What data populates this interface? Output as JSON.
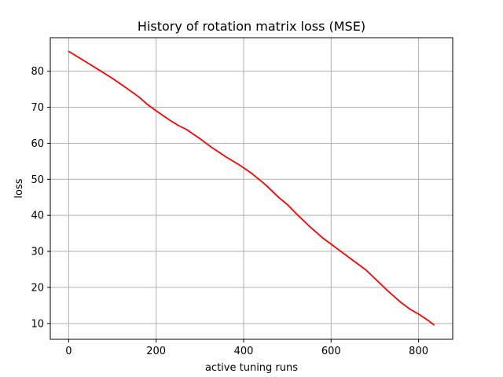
{
  "chart_data": {
    "type": "line",
    "title": "History of rotation matrix loss (MSE)",
    "xlabel": "active tuning runs",
    "ylabel": "loss",
    "xlim": [
      -42,
      878
    ],
    "ylim": [
      5.6,
      89.3
    ],
    "x_ticks": [
      0,
      200,
      400,
      600,
      800
    ],
    "y_ticks": [
      10,
      20,
      30,
      40,
      50,
      60,
      70,
      80
    ],
    "grid": true,
    "series": [
      {
        "color": "#ff0000",
        "x": [
          0,
          50,
          70,
          100,
          130,
          160,
          180,
          200,
          230,
          250,
          270,
          300,
          330,
          360,
          390,
          400,
          420,
          450,
          480,
          500,
          520,
          550,
          580,
          600,
          630,
          650,
          680,
          700,
          730,
          760,
          780,
          800,
          820,
          835
        ],
        "y": [
          85.5,
          81.8,
          80.3,
          78.0,
          75.5,
          72.9,
          70.8,
          69.0,
          66.5,
          65.0,
          63.8,
          61.3,
          58.6,
          56.2,
          54.0,
          53.2,
          51.5,
          48.5,
          45.0,
          43.0,
          40.5,
          37.0,
          33.8,
          32.0,
          29.3,
          27.5,
          24.8,
          22.5,
          19.0,
          15.8,
          14.0,
          12.6,
          11.0,
          9.6
        ]
      }
    ]
  }
}
